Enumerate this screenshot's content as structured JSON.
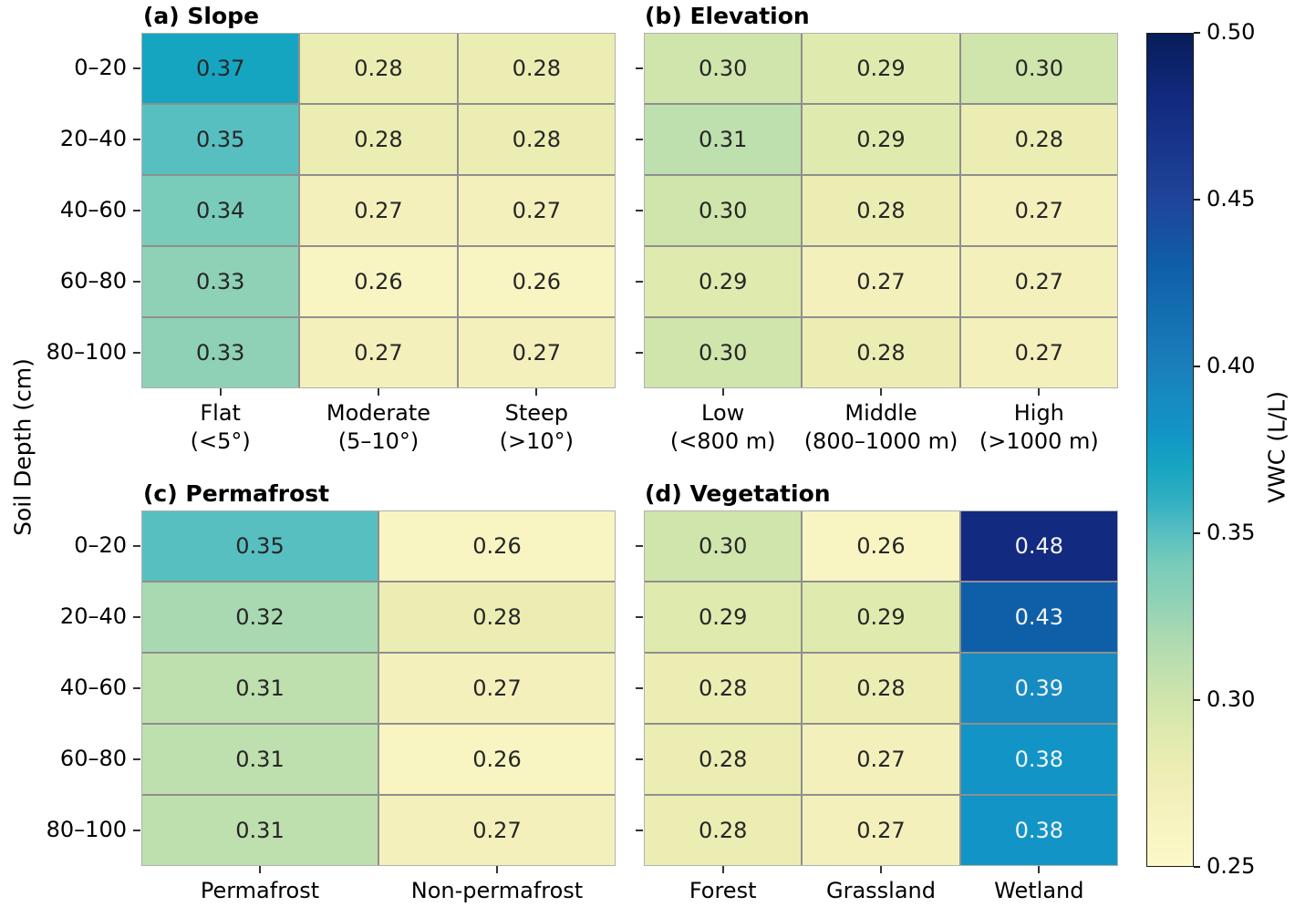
{
  "figure": {
    "y_axis_label": "Soil Depth (cm)",
    "row_labels": [
      "0–20",
      "20–40",
      "40–60",
      "60–80",
      "80–100"
    ],
    "colorbar": {
      "label": "VWC (L/L)",
      "ticks": [
        "0.50",
        "0.45",
        "0.40",
        "0.35",
        "0.30",
        "0.25"
      ],
      "vmin": 0.25,
      "vmax": 0.5
    }
  },
  "chart_data": [
    {
      "type": "heatmap",
      "title": "(a) Slope",
      "rows": [
        "0–20",
        "20–40",
        "40–60",
        "60–80",
        "80–100"
      ],
      "columns": [
        [
          "Flat",
          "(<5°)"
        ],
        [
          "Moderate",
          "(5–10°)"
        ],
        [
          "Steep",
          "(>10°)"
        ]
      ],
      "values": [
        [
          0.37,
          0.28,
          0.28
        ],
        [
          0.35,
          0.28,
          0.28
        ],
        [
          0.34,
          0.27,
          0.27
        ],
        [
          0.33,
          0.26,
          0.26
        ],
        [
          0.33,
          0.27,
          0.27
        ]
      ],
      "show_row_labels": true
    },
    {
      "type": "heatmap",
      "title": "(b) Elevation",
      "rows": [
        "0–20",
        "20–40",
        "40–60",
        "60–80",
        "80–100"
      ],
      "columns": [
        [
          "Low",
          "(<800 m)"
        ],
        [
          "Middle",
          "(800–1000 m)"
        ],
        [
          "High",
          "(>1000 m)"
        ]
      ],
      "values": [
        [
          0.3,
          0.29,
          0.3
        ],
        [
          0.31,
          0.29,
          0.28
        ],
        [
          0.3,
          0.28,
          0.27
        ],
        [
          0.29,
          0.27,
          0.27
        ],
        [
          0.3,
          0.28,
          0.27
        ]
      ],
      "show_row_labels": false
    },
    {
      "type": "heatmap",
      "title": "(c) Permafrost",
      "rows": [
        "0–20",
        "20–40",
        "40–60",
        "60–80",
        "80–100"
      ],
      "columns": [
        [
          "Permafrost"
        ],
        [
          "Non-permafrost"
        ]
      ],
      "values": [
        [
          0.35,
          0.26
        ],
        [
          0.32,
          0.28
        ],
        [
          0.31,
          0.27
        ],
        [
          0.31,
          0.26
        ],
        [
          0.31,
          0.27
        ]
      ],
      "show_row_labels": true
    },
    {
      "type": "heatmap",
      "title": "(d) Vegetation",
      "rows": [
        "0–20",
        "20–40",
        "40–60",
        "60–80",
        "80–100"
      ],
      "columns": [
        [
          "Forest"
        ],
        [
          "Grassland"
        ],
        [
          "Wetland"
        ]
      ],
      "values": [
        [
          0.3,
          0.26,
          0.48
        ],
        [
          0.29,
          0.29,
          0.43
        ],
        [
          0.28,
          0.28,
          0.39
        ],
        [
          0.28,
          0.27,
          0.38
        ],
        [
          0.28,
          0.27,
          0.38
        ]
      ],
      "show_row_labels": false
    }
  ],
  "colormap": {
    "name": "YlGnBu",
    "text_dark": "#262626",
    "text_light": "#f4f4f4",
    "white_text_threshold": 0.375,
    "stops": [
      [
        0.25,
        "#fcf9c9"
      ],
      [
        0.26,
        "#f8f5c3"
      ],
      [
        0.27,
        "#f3f0bc"
      ],
      [
        0.28,
        "#ecedb3"
      ],
      [
        0.29,
        "#dfeaae"
      ],
      [
        0.3,
        "#cfe5ac"
      ],
      [
        0.31,
        "#bedfae"
      ],
      [
        0.32,
        "#a8d9b1"
      ],
      [
        0.33,
        "#8ed1b6"
      ],
      [
        0.34,
        "#7accba"
      ],
      [
        0.35,
        "#58bfc1"
      ],
      [
        0.36,
        "#30afc1"
      ],
      [
        0.37,
        "#16a5c1"
      ],
      [
        0.38,
        "#1295c6"
      ],
      [
        0.39,
        "#168bc2"
      ],
      [
        0.4,
        "#1a7fbc"
      ],
      [
        0.43,
        "#0f5fa8"
      ],
      [
        0.45,
        "#1f4499"
      ],
      [
        0.48,
        "#122a80"
      ],
      [
        0.5,
        "#081d58"
      ]
    ]
  }
}
